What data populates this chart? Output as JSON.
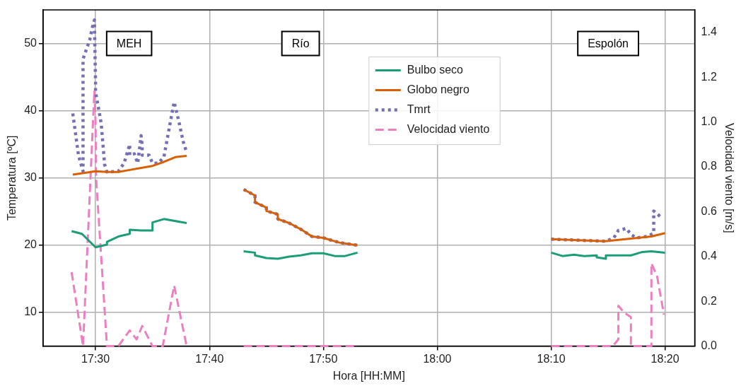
{
  "chart_data": {
    "type": "line",
    "xlabel": "Hora [HH:MM]",
    "ylabel": "Temperatura [ºC]",
    "y2label": "Velocidad viento [m/s]",
    "annotations": [
      "MEH",
      "Río",
      "Espolón"
    ],
    "series": [
      {
        "name": "Bulbo seco",
        "color": "#1b9e77",
        "line_style": "solid",
        "x": [
          17.465,
          17.48,
          17.5,
          17.5167,
          17.5167,
          17.5333,
          17.55,
          17.55,
          17.5667,
          17.5833,
          17.5833,
          17.6,
          17.6333,
          17.6667,
          17.7167,
          17.7333,
          17.7333,
          17.75,
          17.7667,
          17.7833,
          17.8,
          17.8167,
          17.8333,
          17.85,
          17.865,
          17.8833,
          18.0,
          18.1667,
          18.1833,
          18.2,
          18.215,
          18.2333,
          18.2333,
          18.2467,
          18.2467,
          18.2833,
          18.3,
          18.3133,
          18.3333
        ],
        "values": [
          22.1,
          21.7,
          19.7,
          20.1,
          20.5,
          21.3,
          21.7,
          22.3,
          22.2,
          22.2,
          23.4,
          23.9,
          23.3,
          null,
          19.1,
          18.9,
          18.5,
          18.1,
          18.0,
          18.3,
          18.5,
          18.8,
          18.8,
          18.4,
          18.4,
          18.9,
          null,
          18.9,
          18.4,
          18.6,
          18.4,
          18.5,
          18.2,
          18.0,
          18.5,
          18.5,
          19.0,
          19.1,
          18.9
        ]
      },
      {
        "name": "Globo negro",
        "color": "#d95f02",
        "line_style": "solid",
        "x": [
          17.4667,
          17.5,
          17.5167,
          17.5333,
          17.55,
          17.5667,
          17.5833,
          17.6,
          17.6167,
          17.6333,
          17.6667,
          17.7167,
          17.7333,
          17.7333,
          17.75,
          17.75,
          17.7667,
          17.7667,
          17.7833,
          17.8,
          17.8167,
          17.8333,
          17.8567,
          17.8833,
          18.0,
          18.1667,
          18.245,
          18.2833,
          18.3133,
          18.3333
        ],
        "values": [
          30.5,
          31.0,
          30.9,
          30.9,
          31.2,
          31.5,
          31.8,
          32.4,
          33.1,
          33.3,
          null,
          28.3,
          27.4,
          26.4,
          25.6,
          25.1,
          24.6,
          23.9,
          23.3,
          22.4,
          21.3,
          21.1,
          20.4,
          20.0,
          null,
          20.9,
          20.6,
          21.0,
          21.3,
          21.8
        ]
      },
      {
        "name": "Tmrt",
        "color": "#7570b3",
        "line_style": "dotted",
        "x": [
          17.4667,
          17.475,
          17.4817,
          17.4817,
          17.4917,
          17.495,
          17.4983,
          17.5,
          17.5,
          17.5083,
          17.5133,
          17.5167,
          17.5183,
          17.5333,
          17.5417,
          17.55,
          17.55,
          17.5567,
          17.5617,
          17.5667,
          17.5683,
          17.5683,
          17.5783,
          17.5833,
          17.5917,
          17.6,
          17.6083,
          17.615,
          17.6217,
          17.6283,
          17.6333,
          17.6667,
          17.7167,
          17.7333,
          17.7333,
          17.75,
          17.75,
          17.7667,
          17.7667,
          17.7833,
          17.8,
          17.8167,
          17.8333,
          17.8567,
          17.8833,
          18.0,
          18.1667,
          18.2467,
          18.2583,
          18.265,
          18.2767,
          18.2833,
          18.2917,
          18.3067,
          18.3167,
          18.3167,
          18.3283
        ],
        "values": [
          39.6,
          33.4,
          31.0,
          47.7,
          50.6,
          52.3,
          53.5,
          44.2,
          42.8,
          38.1,
          32.0,
          30.9,
          30.9,
          31.0,
          32.2,
          35.0,
          33.4,
          33.6,
          32.2,
          36.3,
          34.8,
          33.4,
          33.4,
          32.2,
          32.2,
          33.1,
          37.7,
          41.3,
          38.5,
          35.4,
          33.8,
          null,
          28.3,
          27.4,
          26.4,
          25.6,
          25.1,
          24.6,
          23.9,
          23.3,
          22.4,
          21.3,
          21.1,
          20.4,
          20.0,
          null,
          20.9,
          20.6,
          21.1,
          22.2,
          22.5,
          21.6,
          21.1,
          21.3,
          21.8,
          25.1,
          24.1
        ]
      },
      {
        "name": "Velocidad viento",
        "color": "#ec7fc0",
        "line_style": "dashed",
        "axis": "y2",
        "x": [
          17.465,
          17.4817,
          17.4983,
          17.5,
          17.5008,
          17.5167,
          17.5333,
          17.55,
          17.56,
          17.5683,
          17.5833,
          17.5983,
          17.615,
          17.6333,
          17.6667,
          17.7167,
          17.8833,
          18.0,
          18.1667,
          18.2567,
          18.265,
          18.265,
          18.2733,
          18.2833,
          18.2833,
          18.3133,
          18.3133,
          18.3217,
          18.3317
        ],
        "values": [
          0.33,
          0.0,
          1.14,
          1.0,
          0.75,
          0.0,
          0.0,
          0.07,
          0.03,
          0.09,
          0.0,
          0.0,
          0.27,
          0.0,
          null,
          0.0,
          0.0,
          null,
          0.0,
          0.0,
          0.03,
          0.18,
          0.15,
          0.13,
          0.0,
          0.0,
          0.37,
          0.31,
          0.14
        ]
      }
    ],
    "xlim": [
      17.4233,
      18.3767
    ],
    "xticks": [
      {
        "value": 17.5,
        "label": "17:30"
      },
      {
        "value": 17.6667,
        "label": "17:40"
      },
      {
        "value": 17.8333,
        "label": "17:50"
      },
      {
        "value": 18.0,
        "label": "18:00"
      },
      {
        "value": 18.1667,
        "label": "18:10"
      },
      {
        "value": 18.3333,
        "label": "18:20"
      }
    ],
    "ylim": [
      5,
      55
    ],
    "yticks": [
      10,
      20,
      30,
      40,
      50
    ],
    "y2lim": [
      0,
      1.5
    ],
    "y2ticks": [
      {
        "value": 0,
        "label": "0.0"
      },
      0.2,
      0.4,
      0.6,
      0.8,
      {
        "value": 1,
        "label": "1.0"
      },
      1.2,
      1.4
    ],
    "grid": true,
    "legend": "top",
    "marker": "none"
  }
}
